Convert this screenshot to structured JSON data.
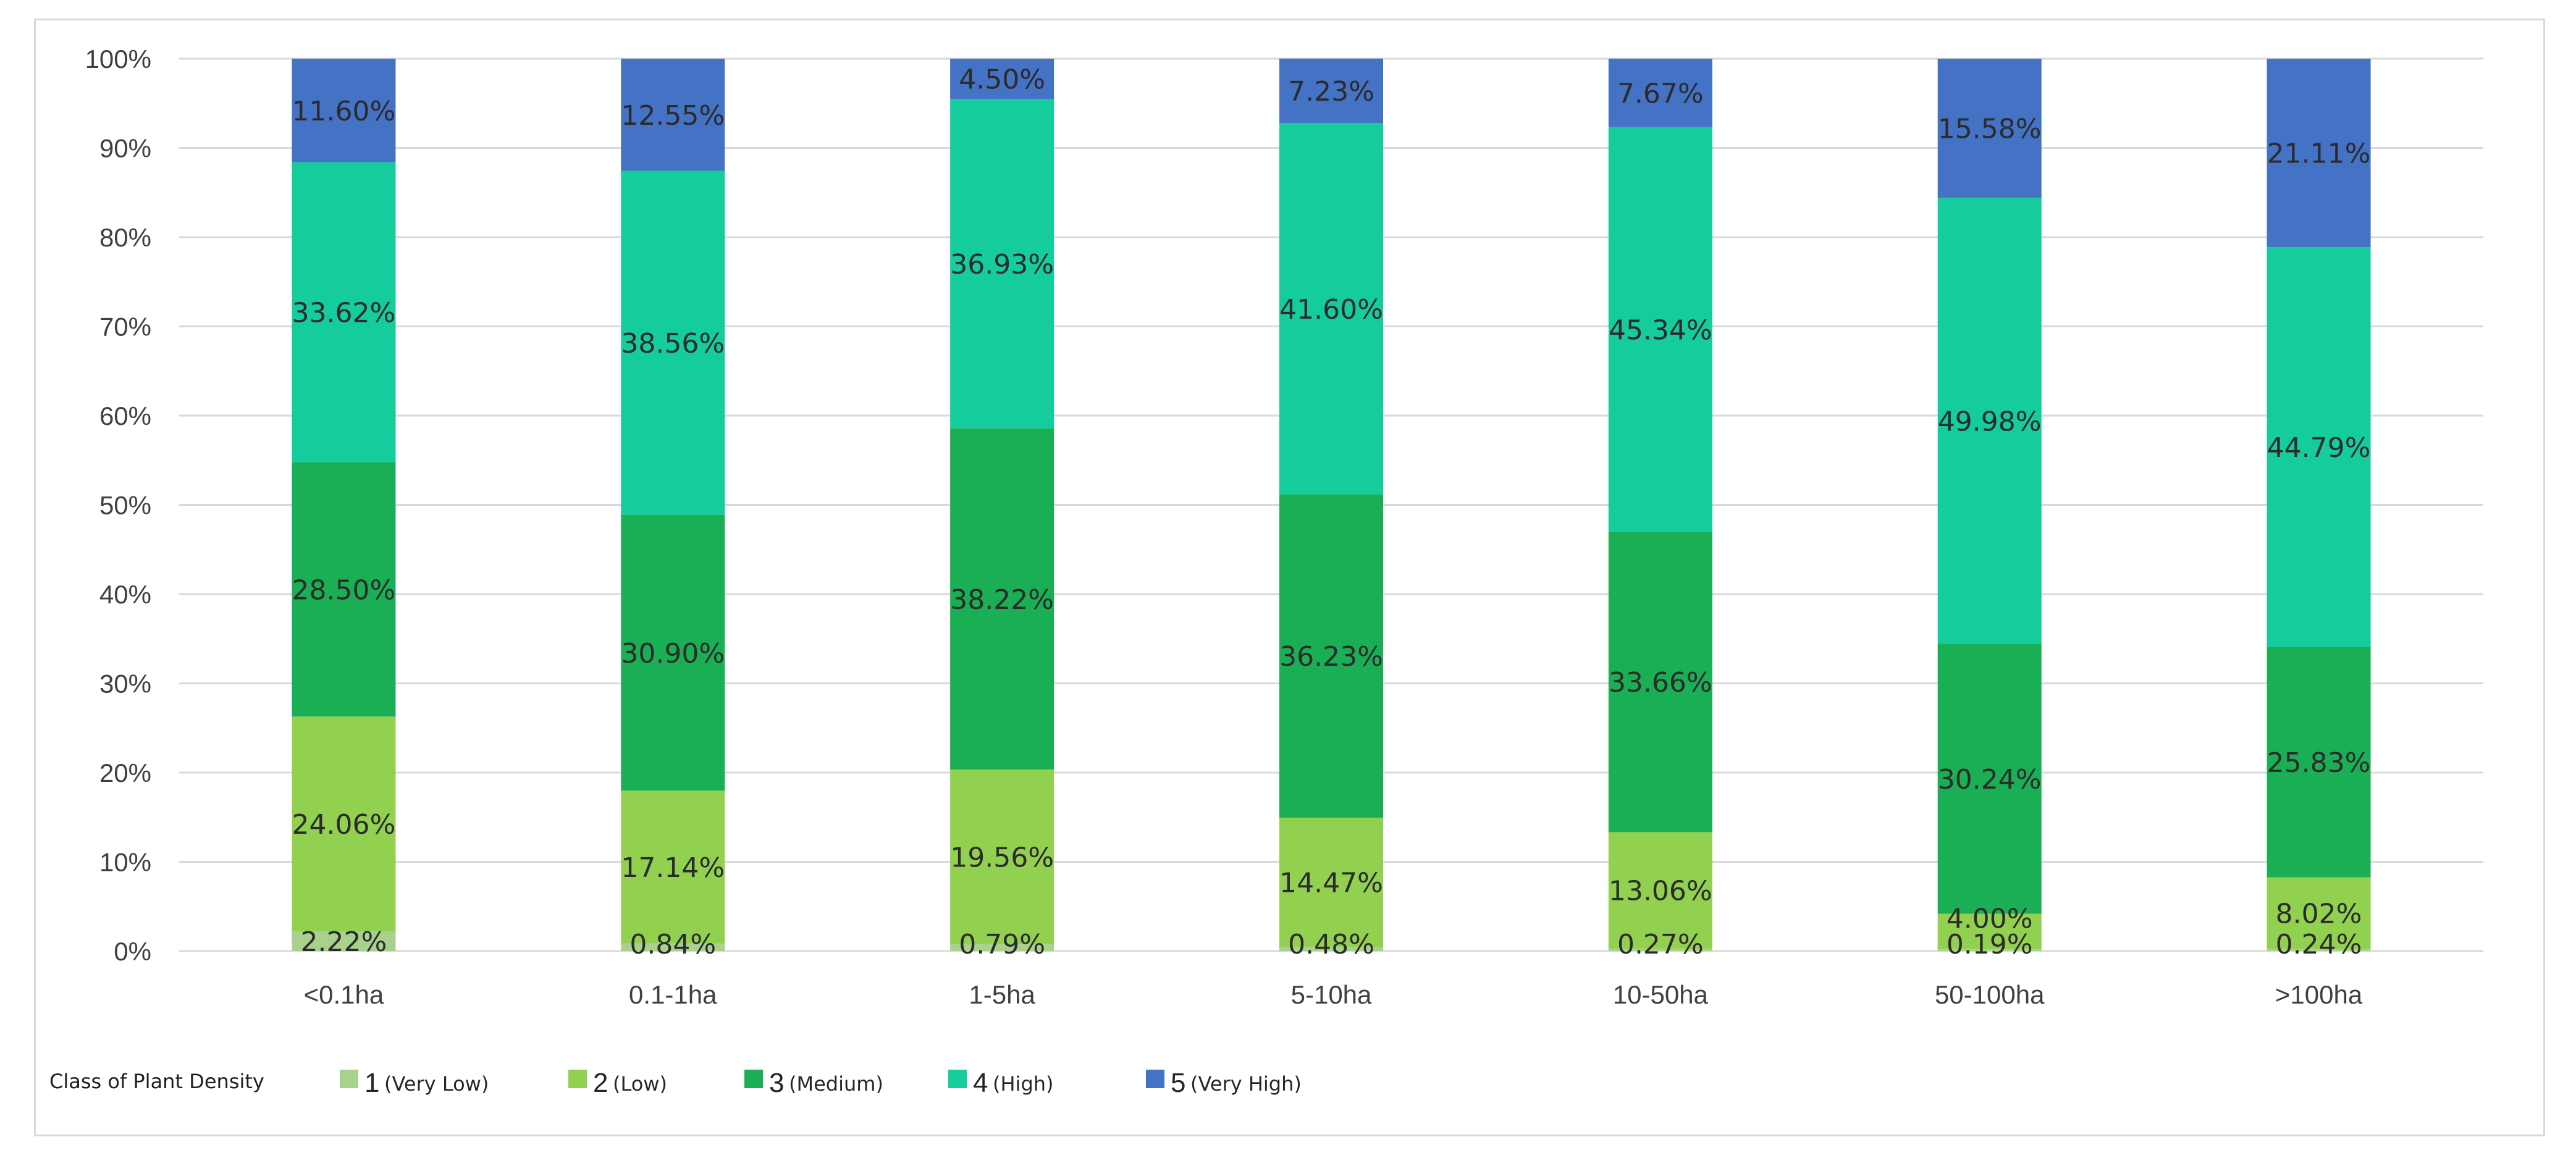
{
  "chart_data": {
    "type": "bar",
    "stacked": true,
    "percent": true,
    "categories": [
      "<0.1ha",
      "0.1-1ha",
      "1-5ha",
      "5-10ha",
      "10-50ha",
      "50-100ha",
      ">100ha"
    ],
    "series": [
      {
        "name": "1",
        "desc": "(Very Low)",
        "color": "#a9d18e",
        "values": [
          2.22,
          0.84,
          0.79,
          0.48,
          0.27,
          0.19,
          0.24
        ],
        "labels": [
          "2.22%",
          "0.84%",
          "0.79%",
          "0.48%",
          "0.27%",
          "0.19%",
          "0.24%"
        ]
      },
      {
        "name": "2",
        "desc": "(Low)",
        "color": "#92d050",
        "values": [
          24.06,
          17.14,
          19.56,
          14.47,
          13.06,
          4.0,
          8.02
        ],
        "labels": [
          "24.06%",
          "17.14%",
          "19.56%",
          "14.47%",
          "13.06%",
          "4.00%",
          "8.02%"
        ]
      },
      {
        "name": "3",
        "desc": "(Medium)",
        "color": "#1aaf54",
        "values": [
          28.5,
          30.9,
          38.22,
          36.23,
          33.66,
          30.24,
          25.83
        ],
        "labels": [
          "28.50%",
          "30.90%",
          "38.22%",
          "36.23%",
          "33.66%",
          "30.24%",
          "25.83%"
        ]
      },
      {
        "name": "4",
        "desc": "(High)",
        "color": "#14cc9c",
        "values": [
          33.62,
          38.56,
          36.93,
          41.6,
          45.34,
          49.98,
          44.79
        ],
        "labels": [
          "33.62%",
          "38.56%",
          "36.93%",
          "41.60%",
          "45.34%",
          "49.98%",
          "44.79%"
        ]
      },
      {
        "name": "5",
        "desc": "(Very High)",
        "color": "#4472c4",
        "values": [
          11.6,
          12.55,
          4.5,
          7.23,
          7.67,
          15.58,
          21.11
        ],
        "labels": [
          "11.60%",
          "12.55%",
          "4.50%",
          "7.23%",
          "7.67%",
          "15.58%",
          "21.11%"
        ]
      }
    ],
    "ylim": [
      0,
      100
    ],
    "yticks": [
      "0%",
      "10%",
      "20%",
      "30%",
      "40%",
      "50%",
      "60%",
      "70%",
      "80%",
      "90%",
      "100%"
    ],
    "grid": true,
    "legend_title": "Class of Plant Density",
    "legend_position": "bottom-left",
    "title": "",
    "xlabel": "",
    "ylabel": ""
  }
}
